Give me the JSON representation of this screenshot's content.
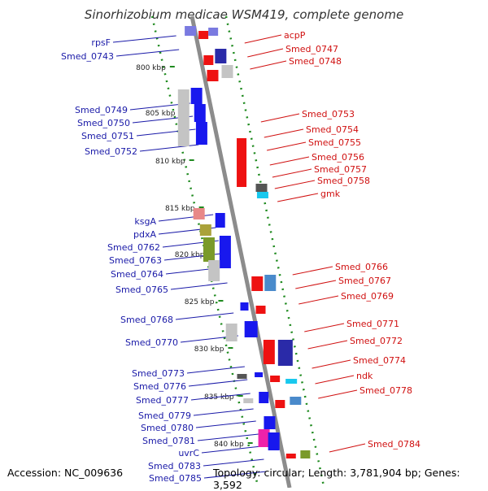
{
  "title": "Sinorhizobium medicae WSM419, complete genome",
  "footer": {
    "accession": "Accession: NC_009636",
    "summary": "Topology: circular; Length: 3,781,904 bp; Genes: 3,592"
  },
  "colors": {
    "backbone": "#8c8c8c",
    "ring": "#1e8a1e",
    "reverse_label": "#1a1aa8",
    "forward_label": "#d01010",
    "forward_gene": "#ee1111",
    "reverse_gene": "#1818ee"
  },
  "ticks": [
    "800 kbp",
    "805 kbp",
    "810 kbp",
    "815 kbp",
    "820 kbp",
    "825 kbp",
    "830 kbp",
    "835 kbp",
    "840 kbp"
  ],
  "reverse_genes": [
    "rpsF",
    "Smed_0743",
    "Smed_0749",
    "Smed_0750",
    "Smed_0751",
    "Smed_0752",
    "ksgA",
    "pdxA",
    "Smed_0762",
    "Smed_0763",
    "Smed_0764",
    "Smed_0765",
    "Smed_0768",
    "Smed_0770",
    "Smed_0773",
    "Smed_0776",
    "Smed_0777",
    "Smed_0779",
    "Smed_0780",
    "Smed_0781",
    "uvrC",
    "Smed_0783",
    "Smed_0785"
  ],
  "forward_genes": [
    "acpP",
    "Smed_0747",
    "Smed_0748",
    "Smed_0753",
    "Smed_0754",
    "Smed_0755",
    "Smed_0756",
    "Smed_0757",
    "Smed_0758",
    "gmk",
    "Smed_0766",
    "Smed_0767",
    "Smed_0769",
    "Smed_0771",
    "Smed_0772",
    "Smed_0774",
    "ndk",
    "Smed_0778",
    "Smed_0784"
  ]
}
